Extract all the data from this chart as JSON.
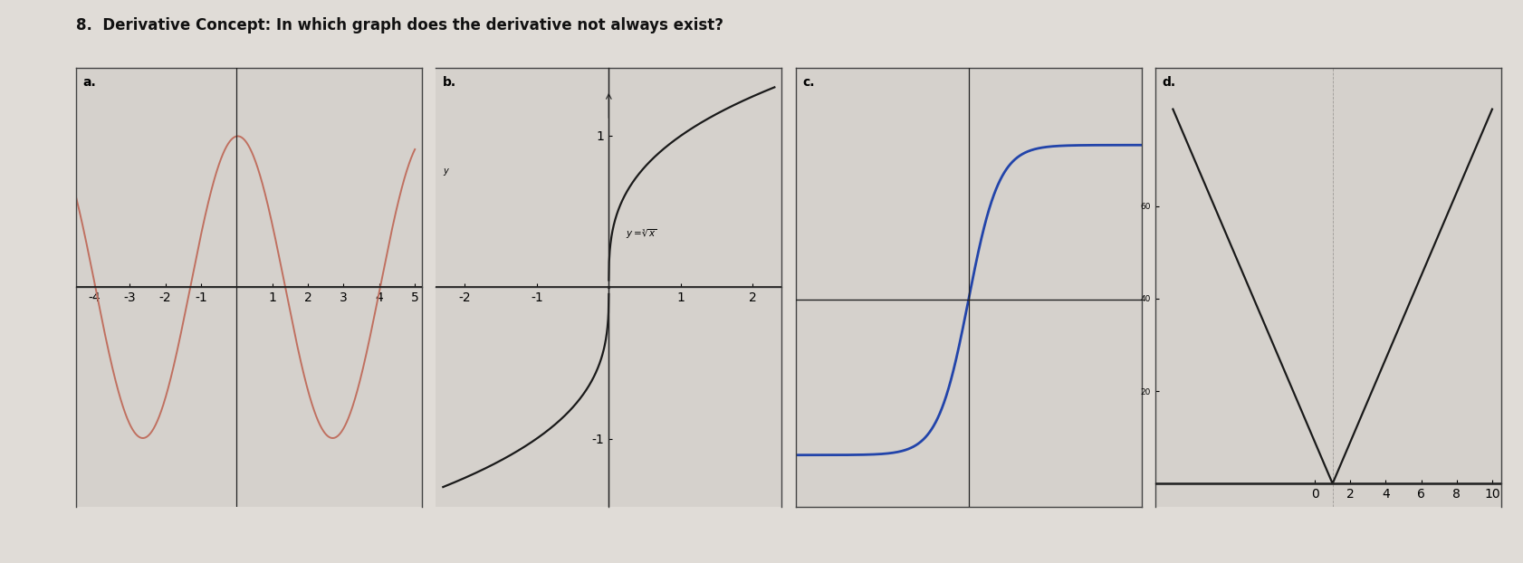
{
  "title": "8.  Derivative Concept: In which graph does the derivative not always exist?",
  "title_fontsize": 12,
  "bg_color": "#e0dcd7",
  "panel_bg": "#d5d1cc",
  "graph_bg": "#d5d1cc",
  "label_a": "a.",
  "label_b": "b.",
  "label_c": "c.",
  "label_d": "d.",
  "curve_a_color": "#c07060",
  "curve_b_color": "#1a1a1a",
  "curve_c_color": "#2244aa",
  "curve_d_color": "#1a1a1a",
  "axis_color": "#222222",
  "label_fontsize": 10,
  "tick_fontsize": 6.5,
  "border_color": "#444444",
  "border_lw": 1.0
}
